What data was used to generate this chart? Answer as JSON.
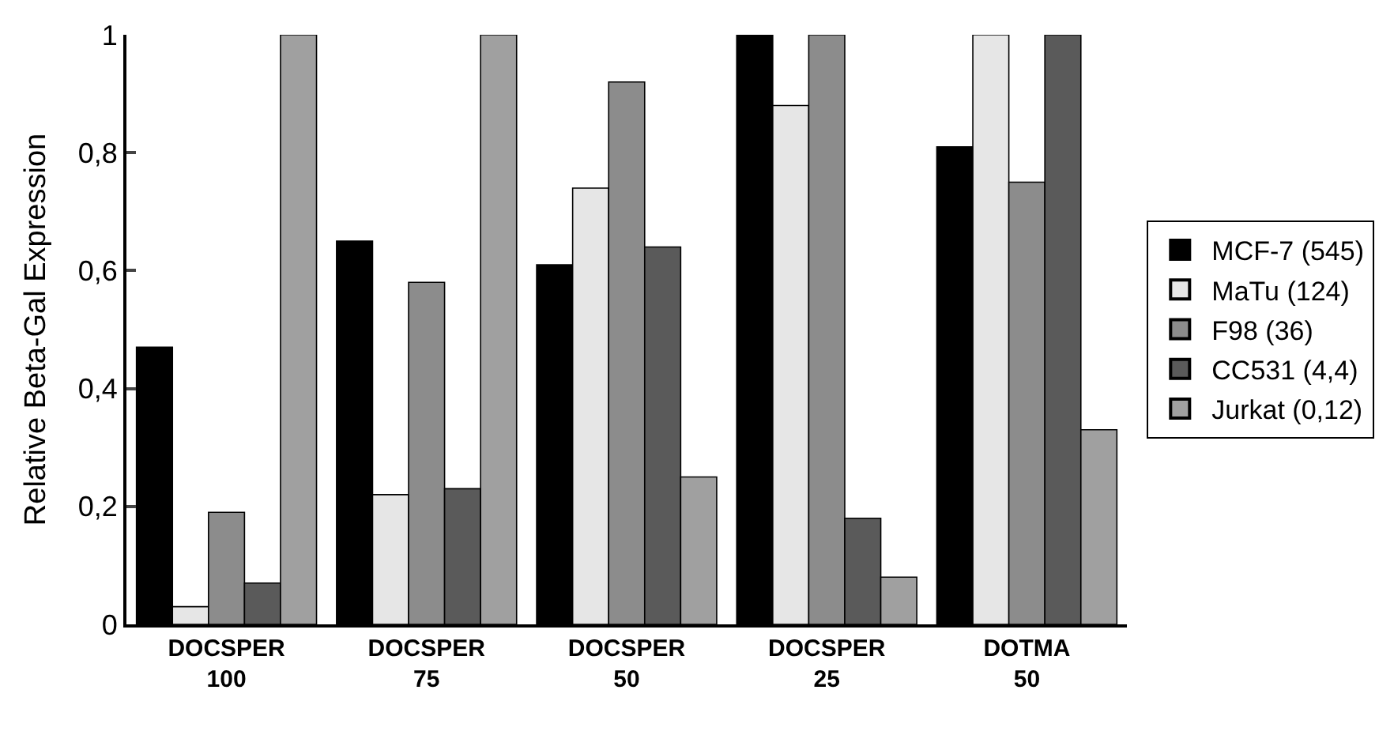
{
  "chart_data": {
    "type": "bar",
    "ylabel": "Relative Beta-Gal Expression",
    "categories": [
      "DOCSPER\n100",
      "DOCSPER\n75",
      "DOCSPER\n50",
      "DOCSPER\n25",
      "DOTMA\n50"
    ],
    "series": [
      {
        "name": "MCF-7 (545)",
        "color": "#000000",
        "values": [
          0.47,
          0.65,
          0.61,
          1,
          0.81
        ]
      },
      {
        "name": "MaTu (124)",
        "color": "#e6e6e6",
        "values": [
          0.03,
          0.22,
          0.74,
          0.88,
          1
        ]
      },
      {
        "name": "F98 (36)",
        "color": "#8c8c8c",
        "values": [
          0.19,
          0.58,
          0.92,
          1,
          0.75
        ]
      },
      {
        "name": "CC531 (4,4)",
        "color": "#5a5a5a",
        "values": [
          0.07,
          0.23,
          0.64,
          0.18,
          1
        ]
      },
      {
        "name": "Jurkat (0,12)",
        "color": "#a0a0a0",
        "values": [
          1,
          1,
          0.25,
          0.08,
          0.33
        ]
      }
    ],
    "ylim": [
      0,
      1
    ],
    "yticks": [
      0,
      {
        "value": 0.2,
        "label": "0,2"
      },
      {
        "value": 0.4,
        "label": "0,4"
      },
      {
        "value": 0.6,
        "label": "0,6"
      },
      {
        "value": 0.8,
        "label": "0,8"
      },
      1
    ],
    "grid": false,
    "legend": "right"
  }
}
